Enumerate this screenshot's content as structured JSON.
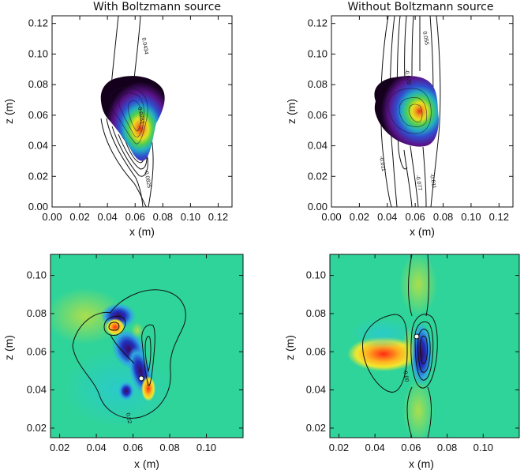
{
  "chart_data": [
    {
      "type": "heatmap",
      "panel": "top-left",
      "title": "With Boltzmann source",
      "xlabel": "x (m)",
      "ylabel": "z (m)",
      "xlim": [
        0.0,
        0.13
      ],
      "ylim": [
        0.0,
        0.125
      ],
      "xticks": [
        "0.00",
        "0.02",
        "0.04",
        "0.06",
        "0.08",
        "0.10",
        "0.12"
      ],
      "yticks": [
        "0.00",
        "0.02",
        "0.04",
        "0.06",
        "0.08",
        "0.10",
        "0.12"
      ],
      "contour_labels": [
        "0.0434",
        "0.0281",
        "-0.0825"
      ],
      "colormap": [
        "#1a0020",
        "#4a0b6e",
        "#3040c8",
        "#24b0c0",
        "#50d050",
        "#f0e020",
        "#e0301c"
      ]
    },
    {
      "type": "heatmap",
      "panel": "top-right",
      "title": "Without Boltzmann source",
      "xlabel": "x (m)",
      "ylabel": "z (m)",
      "xlim": [
        0.0,
        0.13
      ],
      "ylim": [
        0.0,
        0.125
      ],
      "xticks": [
        "0.00",
        "0.02",
        "0.04",
        "0.06",
        "0.08",
        "0.10",
        "0.12"
      ],
      "yticks": [
        "0.00",
        "0.02",
        "0.04",
        "0.06",
        "0.08",
        "0.10",
        "0.12"
      ],
      "contour_labels": [
        "0.055",
        "-0.020",
        "-0.011",
        "-0.077",
        "-0.011"
      ],
      "colormap": [
        "#1a0020",
        "#4a0b6e",
        "#3040c8",
        "#24b0c0",
        "#50d050",
        "#f0e020",
        "#e0301c"
      ]
    },
    {
      "type": "heatmap",
      "panel": "bottom-left",
      "title": "",
      "xlabel": "x (m)",
      "ylabel": "z (m)",
      "xlim": [
        0.015,
        0.12
      ],
      "ylim": [
        0.015,
        0.111
      ],
      "xticks": [
        "0.02",
        "0.04",
        "0.06",
        "0.08",
        "0.10"
      ],
      "yticks": [
        "0.02",
        "0.04",
        "0.06",
        "0.08",
        "0.10"
      ],
      "contour_labels": [
        "0.02"
      ],
      "background": "#2fd49a"
    },
    {
      "type": "heatmap",
      "panel": "bottom-right",
      "title": "",
      "xlabel": "x (m)",
      "ylabel": "z (m)",
      "xlim": [
        0.015,
        0.12
      ],
      "ylim": [
        0.015,
        0.111
      ],
      "xticks": [
        "0.02",
        "0.04",
        "0.06",
        "0.08",
        "0.10"
      ],
      "yticks": [
        "0.02",
        "0.04",
        "0.06",
        "0.08",
        "0.10"
      ],
      "contour_labels": [
        "-0.00"
      ],
      "background": "#2fd49a"
    }
  ]
}
